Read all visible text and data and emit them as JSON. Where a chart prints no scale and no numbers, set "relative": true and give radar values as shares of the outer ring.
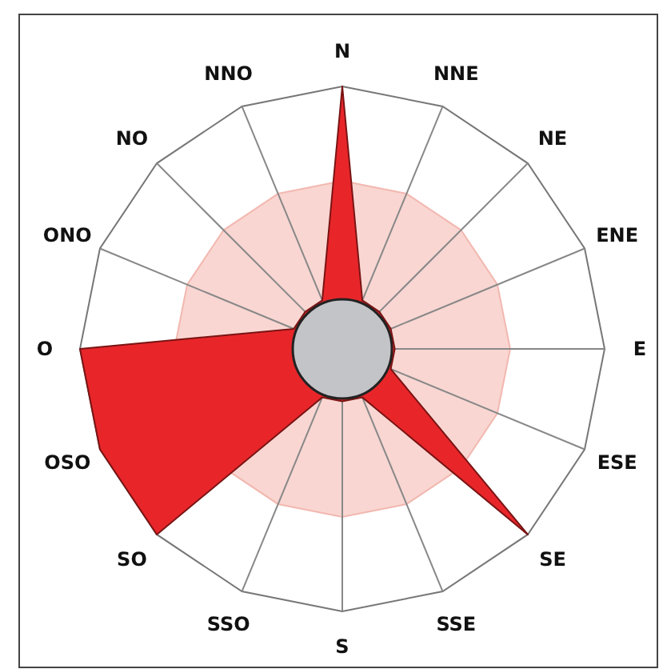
{
  "chart_data": {
    "type": "radar",
    "relative": true,
    "categories": [
      "N",
      "NNE",
      "NE",
      "ENE",
      "E",
      "ESE",
      "SE",
      "SSE",
      "S",
      "SSO",
      "SO",
      "OSO",
      "O",
      "ONO",
      "NO",
      "NNO"
    ],
    "series": [
      {
        "color": "#e8262a",
        "values": [
          1,
          0.2,
          0.2,
          0.2,
          0.2,
          0.2,
          1,
          0.2,
          0.2,
          0.2,
          1,
          1,
          1,
          0.2,
          0.2,
          0.2
        ]
      }
    ]
  }
}
